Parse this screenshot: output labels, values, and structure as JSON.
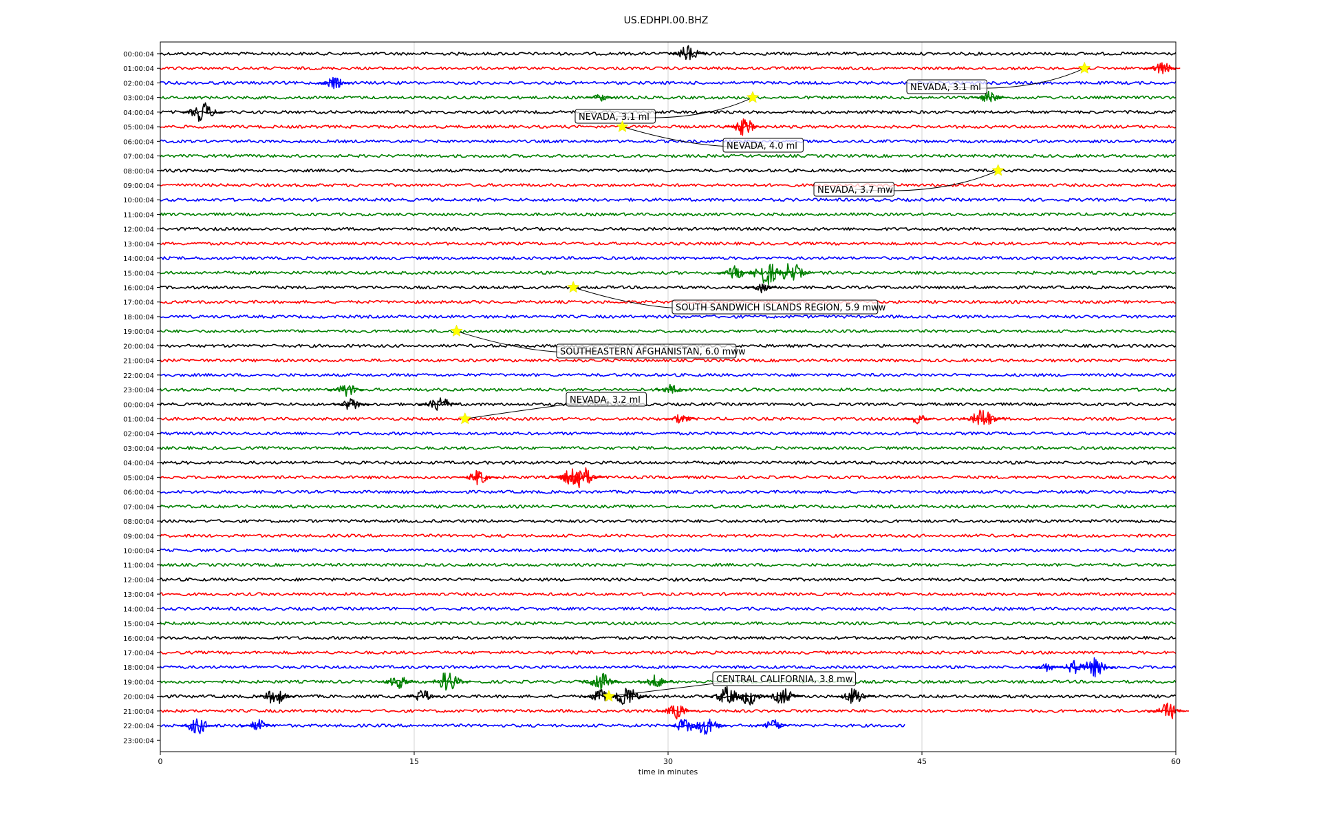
{
  "chart_data": {
    "type": "line",
    "title": "US.EDHPI.00.BHZ",
    "xlabel": "time in minutes",
    "ylabel": "",
    "xlim": [
      0,
      60
    ],
    "xticks": [
      0,
      15,
      30,
      45,
      60
    ],
    "grid_x": true,
    "row_colors": [
      "#000000",
      "#ff0000",
      "#0000ff",
      "#008000"
    ],
    "row_labels": [
      "00:00:04",
      "01:00:04",
      "02:00:04",
      "03:00:04",
      "04:00:04",
      "05:00:04",
      "06:00:04",
      "07:00:04",
      "08:00:04",
      "09:00:04",
      "10:00:04",
      "11:00:04",
      "12:00:04",
      "13:00:04",
      "14:00:04",
      "15:00:04",
      "16:00:04",
      "17:00:04",
      "18:00:04",
      "19:00:04",
      "20:00:04",
      "21:00:04",
      "22:00:04",
      "23:00:04",
      "00:00:04",
      "01:00:04",
      "02:00:04",
      "03:00:04",
      "04:00:04",
      "05:00:04",
      "06:00:04",
      "07:00:04",
      "08:00:04",
      "09:00:04",
      "10:00:04",
      "11:00:04",
      "12:00:04",
      "13:00:04",
      "14:00:04",
      "15:00:04",
      "16:00:04",
      "17:00:04",
      "18:00:04",
      "19:00:04",
      "20:00:04",
      "21:00:04",
      "22:00:04",
      "23:00:04"
    ],
    "last_trace_end_minute": 44.0,
    "bursts": [
      {
        "row": 0,
        "t": 31.2,
        "amp": 1.0
      },
      {
        "row": 1,
        "t": 59.2,
        "amp": 0.8
      },
      {
        "row": 2,
        "t": 10.3,
        "amp": 0.7
      },
      {
        "row": 3,
        "t": 26.0,
        "amp": 0.5
      },
      {
        "row": 3,
        "t": 49.0,
        "amp": 0.8
      },
      {
        "row": 4,
        "t": 2.5,
        "amp": 1.2
      },
      {
        "row": 5,
        "t": 34.5,
        "amp": 1.0
      },
      {
        "row": 15,
        "t": 34.0,
        "amp": 0.8
      },
      {
        "row": 15,
        "t": 35.8,
        "amp": 1.4
      },
      {
        "row": 15,
        "t": 37.3,
        "amp": 1.2
      },
      {
        "row": 16,
        "t": 35.5,
        "amp": 0.6
      },
      {
        "row": 23,
        "t": 11.0,
        "amp": 0.8
      },
      {
        "row": 23,
        "t": 30.2,
        "amp": 0.6
      },
      {
        "row": 24,
        "t": 11.3,
        "amp": 0.8
      },
      {
        "row": 24,
        "t": 16.5,
        "amp": 1.0
      },
      {
        "row": 25,
        "t": 30.8,
        "amp": 0.6
      },
      {
        "row": 25,
        "t": 44.8,
        "amp": 0.6
      },
      {
        "row": 25,
        "t": 48.6,
        "amp": 1.2
      },
      {
        "row": 29,
        "t": 18.8,
        "amp": 0.9
      },
      {
        "row": 29,
        "t": 24.3,
        "amp": 1.0
      },
      {
        "row": 29,
        "t": 24.7,
        "amp": 1.6
      },
      {
        "row": 42,
        "t": 52.4,
        "amp": 0.5
      },
      {
        "row": 42,
        "t": 54.0,
        "amp": 0.8
      },
      {
        "row": 42,
        "t": 55.2,
        "amp": 1.1
      },
      {
        "row": 43,
        "t": 14.0,
        "amp": 0.9
      },
      {
        "row": 43,
        "t": 17.0,
        "amp": 1.2
      },
      {
        "row": 43,
        "t": 26.0,
        "amp": 1.1
      },
      {
        "row": 43,
        "t": 29.3,
        "amp": 0.8
      },
      {
        "row": 44,
        "t": 6.8,
        "amp": 1.0
      },
      {
        "row": 44,
        "t": 15.5,
        "amp": 0.8
      },
      {
        "row": 44,
        "t": 26.0,
        "amp": 0.8
      },
      {
        "row": 44,
        "t": 27.5,
        "amp": 1.3
      },
      {
        "row": 44,
        "t": 33.5,
        "amp": 1.1
      },
      {
        "row": 44,
        "t": 34.8,
        "amp": 1.0
      },
      {
        "row": 44,
        "t": 36.8,
        "amp": 1.0
      },
      {
        "row": 44,
        "t": 41.0,
        "amp": 1.0
      },
      {
        "row": 45,
        "t": 30.5,
        "amp": 0.9
      },
      {
        "row": 45,
        "t": 59.6,
        "amp": 1.0
      },
      {
        "row": 46,
        "t": 2.2,
        "amp": 1.0
      },
      {
        "row": 46,
        "t": 5.8,
        "amp": 0.7
      },
      {
        "row": 46,
        "t": 31.0,
        "amp": 0.9
      },
      {
        "row": 46,
        "t": 32.3,
        "amp": 1.2
      },
      {
        "row": 46,
        "t": 36.2,
        "amp": 0.7
      }
    ],
    "events": [
      {
        "label": "NEVADA, 3.1 ml",
        "row": 1,
        "t": 54.6
      },
      {
        "label": "NEVADA, 3.1 ml",
        "row": 3,
        "t": 35.0
      },
      {
        "label": "NEVADA, 4.0 ml",
        "row": 5,
        "t": 27.3
      },
      {
        "label": "NEVADA, 3.7 mw",
        "row": 8,
        "t": 49.5
      },
      {
        "label": "SOUTH SANDWICH ISLANDS REGION, 5.9 mww",
        "row": 16,
        "t": 24.4
      },
      {
        "label": "SOUTHEASTERN AFGHANISTAN, 6.0 mww",
        "row": 19,
        "t": 17.5
      },
      {
        "label": "NEVADA, 3.2 ml",
        "row": 25,
        "t": 18.0
      },
      {
        "label": "CENTRAL CALIFORNIA, 3.8 mw",
        "row": 44,
        "t": 26.5
      }
    ]
  }
}
